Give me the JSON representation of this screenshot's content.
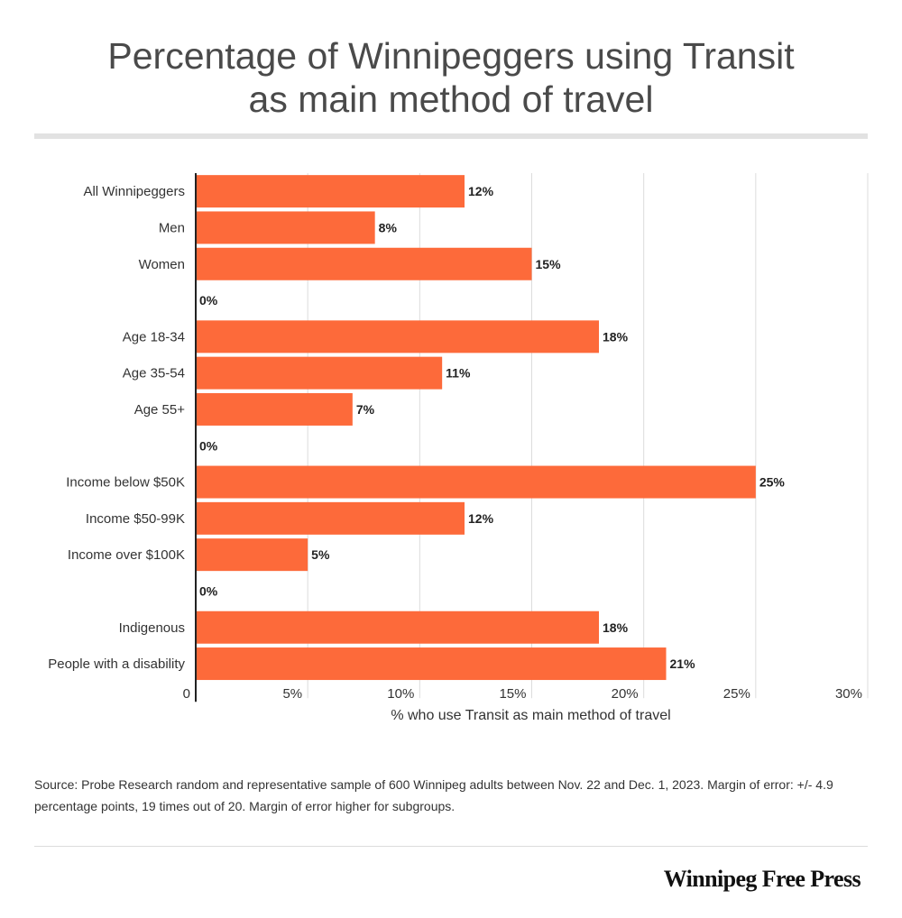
{
  "title_line1": "Percentage of Winnipeggers using Transit",
  "title_line2": "as main method of travel",
  "chart_data": {
    "type": "bar",
    "orientation": "horizontal",
    "categories": [
      "All Winnipeggers",
      "Men",
      "Women",
      "",
      "Age 18-34",
      "Age 35-54",
      "Age 55+",
      "",
      "Income below $50K",
      "Income $50-99K",
      "Income over $100K",
      "",
      "Indigenous",
      "People with a disability"
    ],
    "values": [
      12,
      8,
      15,
      0,
      18,
      11,
      7,
      0,
      25,
      12,
      5,
      0,
      18,
      21
    ],
    "value_labels": [
      "12%",
      "8%",
      "15%",
      "0%",
      "18%",
      "11%",
      "7%",
      "0%",
      "25%",
      "12%",
      "5%",
      "0%",
      "18%",
      "21%"
    ],
    "xlabel": "% who use Transit as main method of travel",
    "ylabel": "",
    "xlim": [
      0,
      30
    ],
    "x_ticks": [
      0,
      5,
      10,
      15,
      20,
      25,
      30
    ],
    "x_tick_labels": [
      "0",
      "5%",
      "10%",
      "15%",
      "20%",
      "25%",
      "30%"
    ],
    "grid": "vertical",
    "bar_color": "#fd6a3a"
  },
  "source_line1": "Source: Probe Research random and representative sample of 600 Winnipeg adults between Nov. 22 and Dec. 1, 2023. Margin of error: +/- 4.9",
  "source_line2": "percentage points, 19 times out of 20. Margin of error higher for subgroups.",
  "brand": "Winnipeg Free Press"
}
